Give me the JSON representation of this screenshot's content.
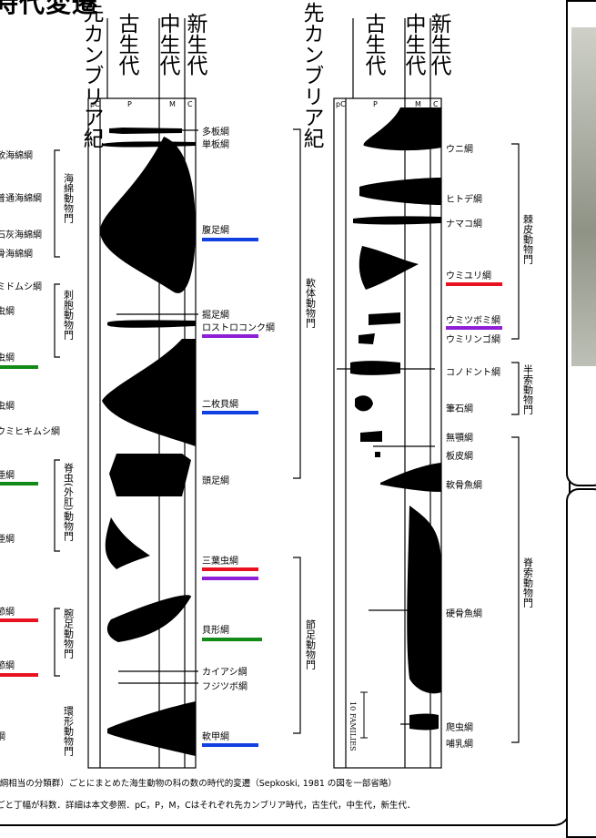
{
  "title": "時代変遷",
  "era_labels": {
    "precambrian": "先カンブリア紀",
    "paleozoic": "古生代",
    "mesozoic": "中生代",
    "cenozoic": "新生代"
  },
  "axis_ticks": {
    "pc": "pC",
    "p": "P",
    "m": "M",
    "c": "C"
  },
  "scale_label": "10 FAMILIES",
  "colors": {
    "red": "#e8111f",
    "blue": "#1040e0",
    "purple": "#8e1fd6",
    "green": "#118a17"
  },
  "left_taxa": {
    "poly": "多板綱",
    "mono": "単板綱",
    "gastro": "腹足綱",
    "scapho": "掘足綱",
    "rostro": "ロストロコンク綱",
    "bival": "二枚貝綱",
    "cephalo": "頭足綱",
    "trilo": "三葉虫綱",
    "ostra": "貝形綱",
    "merosto": "カイアシ綱",
    "barn": "フジツボ綱",
    "insect": "軟甲綱"
  },
  "right_taxa": {
    "echinoid": "ウニ綱",
    "asteroid": "ヒトデ綱",
    "holo": "ナマコ綱",
    "crinoid": "ウミユリ綱",
    "blasto": "ウミツボミ綱",
    "cysto": "ウミリンゴ綱",
    "conodont": "コノドント綱",
    "grapto": "筆石綱",
    "agnatha": "無顎綱",
    "placo": "板皮綱",
    "chondr": "軟骨魚綱",
    "osteich": "硬骨魚綱",
    "reptile": "爬虫綱",
    "mammal": "哺乳綱"
  },
  "left_edge": {
    "e1": "軟海綿綱",
    "e2": "普通海綿綱",
    "e3": "石灰海綿綱",
    "e4": "骨海綿綱",
    "e5": "ミドムシ綱",
    "e6": "虫綱",
    "e7": "虫綱",
    "e8": "虫綱",
    "e9": "ウミヒキムシ綱",
    "e10": "亜綱",
    "e11": "亜綱",
    "e12": "節綱",
    "e13": "節綱",
    "e14": "綱"
  },
  "phyla": {
    "porifera": "海綿動物門",
    "cnidaria": "刺胞動物門",
    "arthro_ext": "脊虫(外肛)動物門",
    "brachio": "腕足動物門",
    "bryo": "環形動物門",
    "mollusca": "軟体動物門",
    "arthropoda": "節足動物門",
    "echino": "棘皮動物門",
    "hemi": "半索動物門",
    "chordata": "脊索動物門"
  },
  "caption": {
    "line1": "(綱相当の分類群）ごとにまとめた海生動物の科の数の時代的変遷（Sepkoski, 1981 の図を一部省略）",
    "line2": "ごと丁幅が科数．詳細は本文参照．pC，P，M，Cはそれぞれ先カンブリア時代，古生代，中生代，新生代．"
  }
}
